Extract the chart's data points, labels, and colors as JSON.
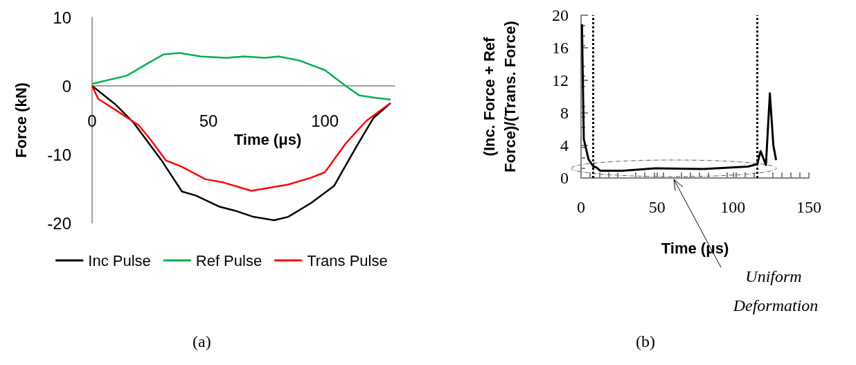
{
  "chart_data": [
    {
      "type": "line",
      "xlabel": "Time (μs)",
      "ylabel": "Force (kN)",
      "xlim": [
        0,
        130
      ],
      "ylim": [
        -20,
        10
      ],
      "xticks": [
        0,
        50,
        100
      ],
      "yticks": [
        -20,
        -10,
        0,
        10
      ],
      "legend": "bottom",
      "annotations": [
        "(a)"
      ],
      "series": [
        {
          "name": "Inc Pulse",
          "color": "#000000",
          "x": [
            0,
            10,
            17.9,
            29.7,
            38.6,
            44.6,
            54.5,
            61.4,
            69.3,
            78.2,
            84.2,
            94,
            103.9,
            113.8,
            120.8,
            128.2
          ],
          "values": [
            0,
            -2.7,
            -5.4,
            -10.8,
            -15.4,
            -16,
            -17.6,
            -18.2,
            -19.1,
            -19.6,
            -19.1,
            -17.1,
            -14.6,
            -8.7,
            -4.7,
            -2.5
          ]
        },
        {
          "name": "Ref Pulse",
          "color": "#00b050",
          "x": [
            0,
            15,
            22.9,
            30.8,
            37.7,
            46.6,
            57.5,
            65.3,
            74.2,
            80.1,
            89,
            100,
            108.9,
            114.8,
            122.8,
            128.2
          ],
          "values": [
            0.3,
            1.5,
            3.1,
            4.6,
            4.8,
            4.3,
            4.1,
            4.3,
            4.1,
            4.3,
            3.7,
            2.3,
            0,
            -1.4,
            -1.8,
            -2
          ]
        },
        {
          "name": "Trans Pulse",
          "color": "#ff0000",
          "x": [
            0,
            2.6,
            10,
            19.9,
            24.8,
            31.8,
            38.6,
            48.6,
            56.5,
            68.4,
            84.2,
            94,
            100,
            108.9,
            117.8,
            128.2
          ],
          "values": [
            0,
            -1.9,
            -3.5,
            -5.7,
            -7.7,
            -10.9,
            -11.8,
            -13.6,
            -14.1,
            -15.3,
            -14.4,
            -13.4,
            -12.6,
            -8.4,
            -5.1,
            -2.5
          ]
        }
      ]
    },
    {
      "type": "line",
      "xlabel": "Time (μs)",
      "ylabel": "(Inc. Force + Ref Force)/(Trans. Force)",
      "xlim": [
        0,
        150
      ],
      "ylim": [
        0,
        20
      ],
      "xticks": [
        0,
        50,
        100,
        150
      ],
      "yticks": [
        0,
        4,
        8,
        12,
        16,
        20
      ],
      "annotations": [
        "(b)",
        "Uniform Deformation"
      ],
      "ref_lines": [
        {
          "axis": "x",
          "value": 8,
          "line_style": "dotted",
          "color": "#000000"
        },
        {
          "axis": "x",
          "value": 116,
          "line_style": "dotted",
          "color": "#000000"
        }
      ],
      "series": [
        {
          "color": "#000000",
          "x": [
            0.6,
            1.8,
            4.9,
            8.2,
            10.2,
            12.5,
            27.5,
            49,
            79.4,
            109.9,
            116,
            118.2,
            121.7,
            124.3,
            126.6,
            128.4
          ],
          "values": [
            18.9,
            4.8,
            2.3,
            1.4,
            1.3,
            0.9,
            0.9,
            1.2,
            1.1,
            1.4,
            1.7,
            3.3,
            1.6,
            10.4,
            4,
            2.2
          ]
        }
      ]
    }
  ]
}
